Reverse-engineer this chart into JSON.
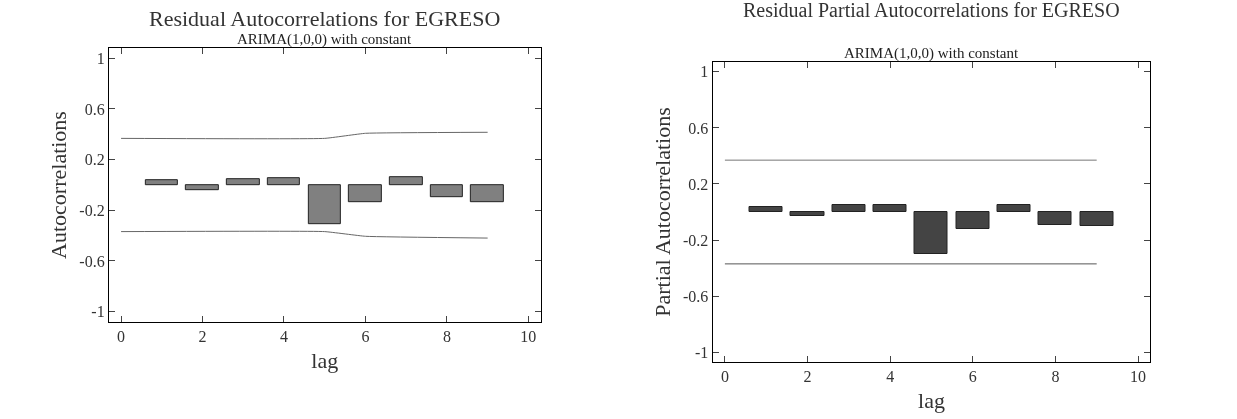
{
  "chart_data": [
    {
      "type": "bar",
      "title": "Residual Autocorrelations for EGRESO",
      "subtitle": "ARIMA(1,0,0) with constant",
      "xlabel": "lag",
      "ylabel": "Autocorrelations",
      "x": [
        1,
        2,
        3,
        4,
        5,
        6,
        7,
        8,
        9
      ],
      "series": [
        {
          "color": "#808080",
          "values": [
            0.035,
            -0.04,
            0.045,
            0.056,
            -0.31,
            -0.136,
            0.064,
            -0.099,
            -0.136
          ]
        },
        {
          "type": "line",
          "color": "#666666",
          "x": [
            0,
            5,
            6,
            9
          ],
          "values": [
            0.368,
            0.368,
            0.408,
            0.416
          ]
        },
        {
          "type": "line",
          "color": "#666666",
          "x": [
            0,
            5,
            6,
            9
          ],
          "values": [
            -0.368,
            -0.368,
            -0.405,
            -0.419
          ]
        }
      ],
      "xlim": [
        -0.3,
        10.3
      ],
      "xticks": [
        0,
        2,
        4,
        6,
        8,
        10
      ],
      "ylim": [
        -1.08,
        1.08
      ],
      "yticks": [
        -1,
        -0.6,
        -0.2,
        0.2,
        0.6,
        1
      ]
    },
    {
      "type": "bar",
      "title": "Residual Partial Autocorrelations for EGRESO",
      "subtitle": "ARIMA(1,0,0) with constant",
      "xlabel": "lag",
      "ylabel": "Partial Autocorrelations",
      "x": [
        1,
        2,
        3,
        4,
        5,
        6,
        7,
        8,
        9
      ],
      "series": [
        {
          "color": "#444444",
          "values": [
            0.035,
            -0.03,
            0.05,
            0.05,
            -0.3,
            -0.12,
            0.05,
            -0.095,
            -0.1
          ]
        },
        {
          "type": "line",
          "color": "#777777",
          "x": [
            0,
            9
          ],
          "values": [
            0.37,
            0.37
          ]
        },
        {
          "type": "line",
          "color": "#555555",
          "x": [
            0,
            9
          ],
          "values": [
            -0.37,
            -0.37
          ]
        }
      ],
      "xlim": [
        -0.3,
        10.3
      ],
      "xticks": [
        0,
        2,
        4,
        6,
        8,
        10
      ],
      "ylim": [
        -1.07,
        1.07
      ],
      "yticks": [
        -1,
        -0.6,
        -0.2,
        0.2,
        0.6,
        1
      ]
    }
  ]
}
